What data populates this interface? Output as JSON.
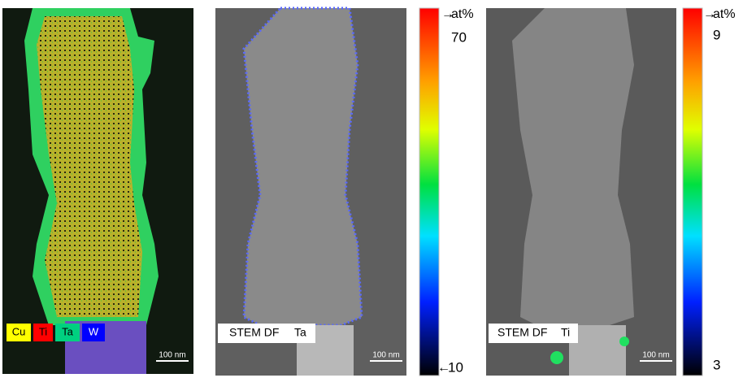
{
  "panels": [
    {
      "legend": [
        "Cu",
        "Ti",
        "Ta",
        "W"
      ],
      "scale_bar": "100 nm"
    },
    {
      "caption": "STEM DF",
      "element": "Ta",
      "scale_bar": "100 nm",
      "colorbar": {
        "unit": "at%",
        "max": 70,
        "min": 10
      }
    },
    {
      "caption": "STEM DF",
      "element": "Ti",
      "scale_bar": "100 nm",
      "colorbar": {
        "unit": "at%",
        "max": 9,
        "min": 3
      }
    }
  ]
}
